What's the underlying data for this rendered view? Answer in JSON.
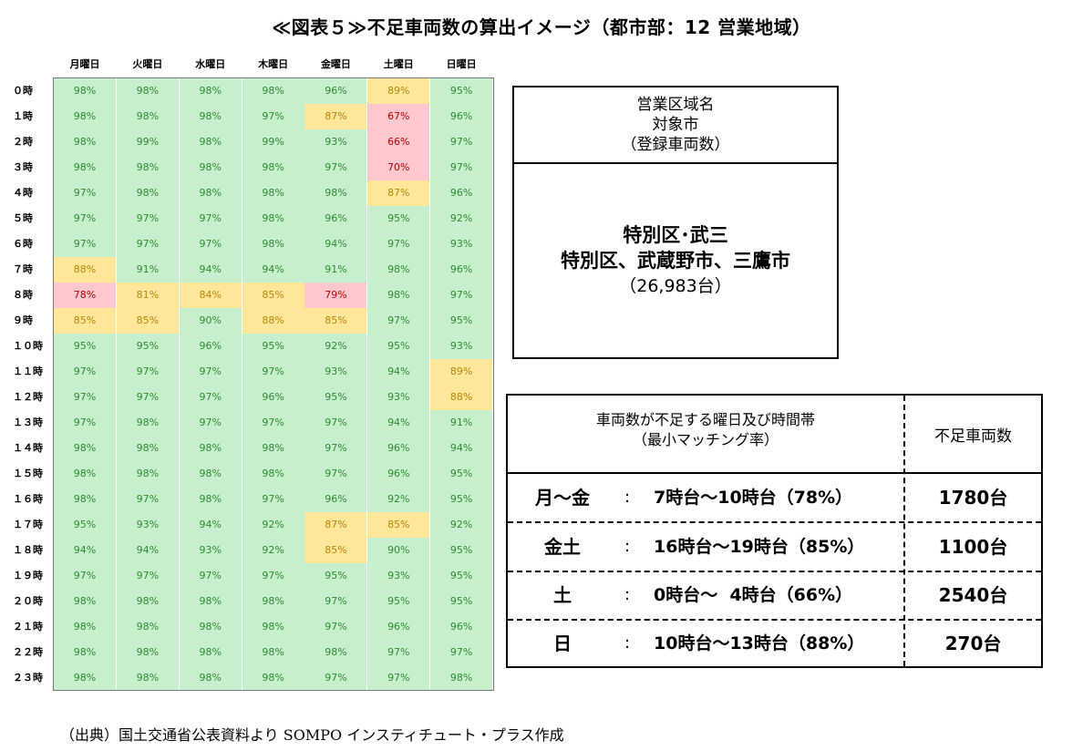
{
  "title": "≪図表５≫不足車両数の算出イメージ（都市部：12 営業地域）",
  "source": "（出典）国土交通省公表資料より SOMPO インスティチュート・プラス作成",
  "colors": {
    "green": "#c6efce",
    "green_text": "#2e8b2e",
    "yellow": "#ffe699",
    "yellow_text": "#b8860b",
    "pink": "#ffc7ce",
    "pink_text": "#c00000"
  },
  "chart_data": {
    "type": "heatmap",
    "title": "",
    "unit": "%",
    "columns": [
      "月曜日",
      "火曜日",
      "水曜日",
      "木曜日",
      "金曜日",
      "土曜日",
      "日曜日"
    ],
    "rows": [
      "０時",
      "１時",
      "２時",
      "３時",
      "４時",
      "５時",
      "６時",
      "７時",
      "８時",
      "９時",
      "１０時",
      "１１時",
      "１２時",
      "１３時",
      "１４時",
      "１５時",
      "１６時",
      "１７時",
      "１８時",
      "１９時",
      "２０時",
      "２１時",
      "２２時",
      "２３時"
    ],
    "values": [
      [
        98,
        98,
        98,
        98,
        96,
        89,
        95
      ],
      [
        98,
        98,
        98,
        97,
        87,
        67,
        96
      ],
      [
        98,
        99,
        98,
        99,
        93,
        66,
        97
      ],
      [
        98,
        98,
        98,
        98,
        97,
        70,
        97
      ],
      [
        97,
        98,
        98,
        98,
        98,
        87,
        96
      ],
      [
        97,
        97,
        97,
        98,
        96,
        95,
        92
      ],
      [
        97,
        97,
        97,
        98,
        94,
        97,
        93
      ],
      [
        88,
        91,
        94,
        94,
        91,
        98,
        96
      ],
      [
        78,
        81,
        84,
        85,
        79,
        98,
        97
      ],
      [
        85,
        85,
        90,
        88,
        85,
        97,
        95
      ],
      [
        95,
        95,
        96,
        95,
        92,
        95,
        93
      ],
      [
        97,
        97,
        97,
        97,
        93,
        94,
        89
      ],
      [
        97,
        97,
        97,
        96,
        95,
        93,
        88
      ],
      [
        97,
        98,
        97,
        97,
        97,
        94,
        91
      ],
      [
        98,
        98,
        98,
        98,
        97,
        96,
        94
      ],
      [
        98,
        98,
        98,
        98,
        97,
        96,
        95
      ],
      [
        98,
        97,
        98,
        97,
        96,
        92,
        95
      ],
      [
        95,
        93,
        94,
        92,
        87,
        85,
        92
      ],
      [
        94,
        94,
        93,
        92,
        85,
        90,
        95
      ],
      [
        97,
        97,
        97,
        97,
        95,
        93,
        95
      ],
      [
        98,
        98,
        98,
        98,
        97,
        95,
        95
      ],
      [
        98,
        98,
        98,
        98,
        97,
        96,
        96
      ],
      [
        98,
        98,
        98,
        98,
        98,
        97,
        97
      ],
      [
        98,
        98,
        98,
        98,
        97,
        97,
        98
      ]
    ],
    "highlight": [
      [
        0,
        0,
        0,
        0,
        0,
        1,
        0
      ],
      [
        0,
        0,
        0,
        0,
        1,
        2,
        0
      ],
      [
        0,
        0,
        0,
        0,
        0,
        2,
        0
      ],
      [
        0,
        0,
        0,
        0,
        0,
        2,
        0
      ],
      [
        0,
        0,
        0,
        0,
        0,
        1,
        0
      ],
      [
        0,
        0,
        0,
        0,
        0,
        0,
        0
      ],
      [
        0,
        0,
        0,
        0,
        0,
        0,
        0
      ],
      [
        1,
        0,
        0,
        0,
        0,
        0,
        0
      ],
      [
        2,
        1,
        1,
        1,
        2,
        0,
        0
      ],
      [
        1,
        1,
        0,
        1,
        1,
        0,
        0
      ],
      [
        0,
        0,
        0,
        0,
        0,
        0,
        0
      ],
      [
        0,
        0,
        0,
        0,
        0,
        0,
        1
      ],
      [
        0,
        0,
        0,
        0,
        0,
        0,
        1
      ],
      [
        0,
        0,
        0,
        0,
        0,
        0,
        0
      ],
      [
        0,
        0,
        0,
        0,
        0,
        0,
        0
      ],
      [
        0,
        0,
        0,
        0,
        0,
        0,
        0
      ],
      [
        0,
        0,
        0,
        0,
        0,
        0,
        0
      ],
      [
        0,
        0,
        0,
        0,
        1,
        1,
        0
      ],
      [
        0,
        0,
        0,
        0,
        1,
        0,
        0
      ],
      [
        0,
        0,
        0,
        0,
        0,
        0,
        0
      ],
      [
        0,
        0,
        0,
        0,
        0,
        0,
        0
      ],
      [
        0,
        0,
        0,
        0,
        0,
        0,
        0
      ],
      [
        0,
        0,
        0,
        0,
        0,
        0,
        0
      ],
      [
        0,
        0,
        0,
        0,
        0,
        0,
        0
      ]
    ]
  },
  "info_box": {
    "header_line1": "営業区域名",
    "header_line2": "対象市",
    "header_line3": "（登録車両数）",
    "area_name": "特別区･武三",
    "cities": "特別区、武蔵野市、三鷹市",
    "vehicles": "（26,983台）"
  },
  "shortage_table": {
    "header_left_line1": "車両数が不足する曜日及び時間帯",
    "header_left_line2": "（最小マッチング率）",
    "header_right": "不足車両数",
    "rows": [
      {
        "day": "月～金",
        "colon": ":",
        "time": "7時台～10時台（78%）",
        "count": "1780台"
      },
      {
        "day": "金土",
        "colon": ":",
        "time": "16時台～19時台（85%）",
        "count": "1100台"
      },
      {
        "day": "土",
        "colon": ":",
        "time": "0時台～  4時台（66%）",
        "count": "2540台"
      },
      {
        "day": "日",
        "colon": ":",
        "time": "10時台～13時台（88%）",
        "count": "270台"
      }
    ]
  }
}
